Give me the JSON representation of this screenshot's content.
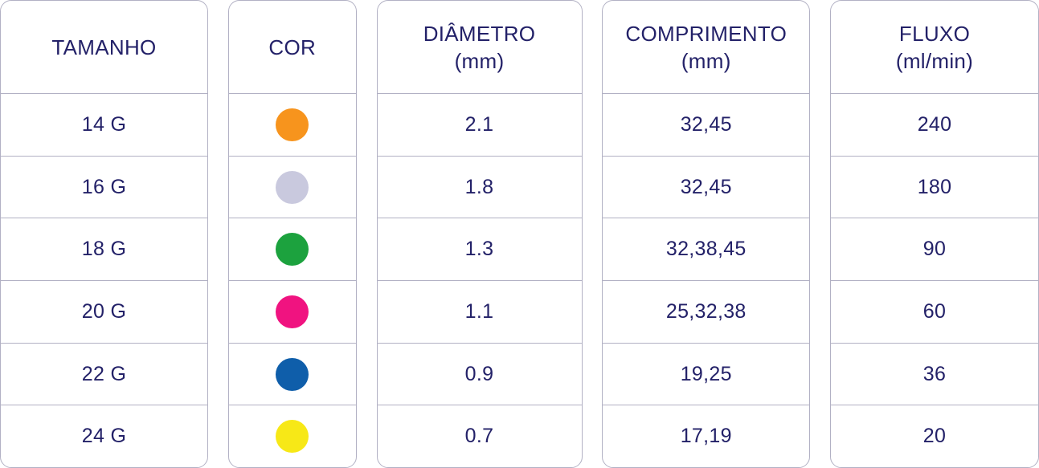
{
  "table": {
    "columns": [
      {
        "label": "TAMANHO",
        "sublabel": ""
      },
      {
        "label": "COR",
        "sublabel": ""
      },
      {
        "label": "DIÂMETRO",
        "sublabel": "(mm)"
      },
      {
        "label": "COMPRIMENTO",
        "sublabel": "(mm)"
      },
      {
        "label": "FLUXO",
        "sublabel": "(ml/min)"
      }
    ],
    "rows": [
      {
        "tamanho": "14 G",
        "cor_name": "orange",
        "cor_hex": "#F7941D",
        "diametro": "2.1",
        "comprimento": "32,45",
        "fluxo": "240"
      },
      {
        "tamanho": "16 G",
        "cor_name": "gray",
        "cor_hex": "#C9C9DE",
        "diametro": "1.8",
        "comprimento": "32,45",
        "fluxo": "180"
      },
      {
        "tamanho": "18 G",
        "cor_name": "green",
        "cor_hex": "#1CA23E",
        "diametro": "1.3",
        "comprimento": "32,38,45",
        "fluxo": "90"
      },
      {
        "tamanho": "20 G",
        "cor_name": "pink",
        "cor_hex": "#F01380",
        "diametro": "1.1",
        "comprimento": "25,32,38",
        "fluxo": "60"
      },
      {
        "tamanho": "22 G",
        "cor_name": "blue",
        "cor_hex": "#0F5EAA",
        "diametro": "0.9",
        "comprimento": "19,25",
        "fluxo": "36"
      },
      {
        "tamanho": "24 G",
        "cor_name": "yellow",
        "cor_hex": "#F7E817",
        "diametro": "0.7",
        "comprimento": "17,19",
        "fluxo": "20"
      }
    ]
  },
  "colors": {
    "text": "#232168",
    "border": "#B2B1C4",
    "background": "#FFFFFF"
  },
  "chart_data": {
    "type": "table",
    "title": "",
    "columns": [
      "TAMANHO",
      "COR",
      "DIÂMETRO (mm)",
      "COMPRIMENTO (mm)",
      "FLUXO (ml/min)"
    ],
    "rows": [
      [
        "14 G",
        "orange",
        "2.1",
        "32,45",
        "240"
      ],
      [
        "16 G",
        "gray",
        "1.8",
        "32,45",
        "180"
      ],
      [
        "18 G",
        "green",
        "1.3",
        "32,38,45",
        "90"
      ],
      [
        "20 G",
        "pink",
        "1.1",
        "25,32,38",
        "60"
      ],
      [
        "22 G",
        "blue",
        "0.9",
        "19,25",
        "36"
      ],
      [
        "24 G",
        "yellow",
        "0.7",
        "17,19",
        "20"
      ]
    ]
  }
}
